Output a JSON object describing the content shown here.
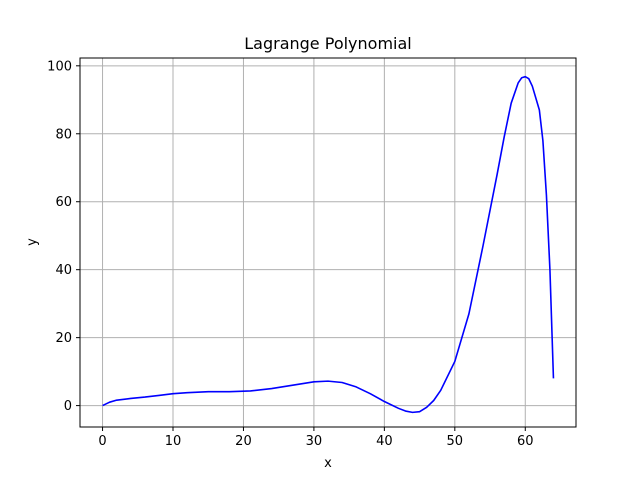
{
  "chart_data": {
    "type": "line",
    "title": "Lagrange Polynomial",
    "xlabel": "x",
    "ylabel": "y",
    "xlim": [
      -3.2,
      67.2
    ],
    "ylim": [
      -6.3,
      102.3
    ],
    "xticks": [
      0,
      10,
      20,
      30,
      40,
      50,
      60
    ],
    "yticks": [
      0,
      20,
      40,
      60,
      80,
      100
    ],
    "grid": true,
    "series": [
      {
        "color": "#0000ff",
        "x": [
          0,
          1,
          2,
          4,
          6,
          8,
          10,
          12,
          15,
          18,
          21,
          24,
          27,
          30,
          32,
          34,
          36,
          38,
          40,
          42,
          43,
          44,
          45,
          46,
          47,
          48,
          50,
          52,
          54,
          56,
          57,
          58,
          59,
          59.5,
          60,
          60.5,
          61,
          62,
          62.5,
          63,
          63.5,
          64
        ],
        "y": [
          0,
          1,
          1.6,
          2.1,
          2.5,
          3,
          3.5,
          3.8,
          4.1,
          4.1,
          4.3,
          5,
          6,
          7,
          7.2,
          6.8,
          5.5,
          3.5,
          1.2,
          -0.8,
          -1.6,
          -2,
          -1.8,
          -0.5,
          1.5,
          4.5,
          13,
          27,
          47,
          68,
          79,
          89,
          95,
          96.5,
          96.8,
          96.2,
          94,
          87,
          78,
          62,
          40,
          8
        ]
      }
    ]
  }
}
